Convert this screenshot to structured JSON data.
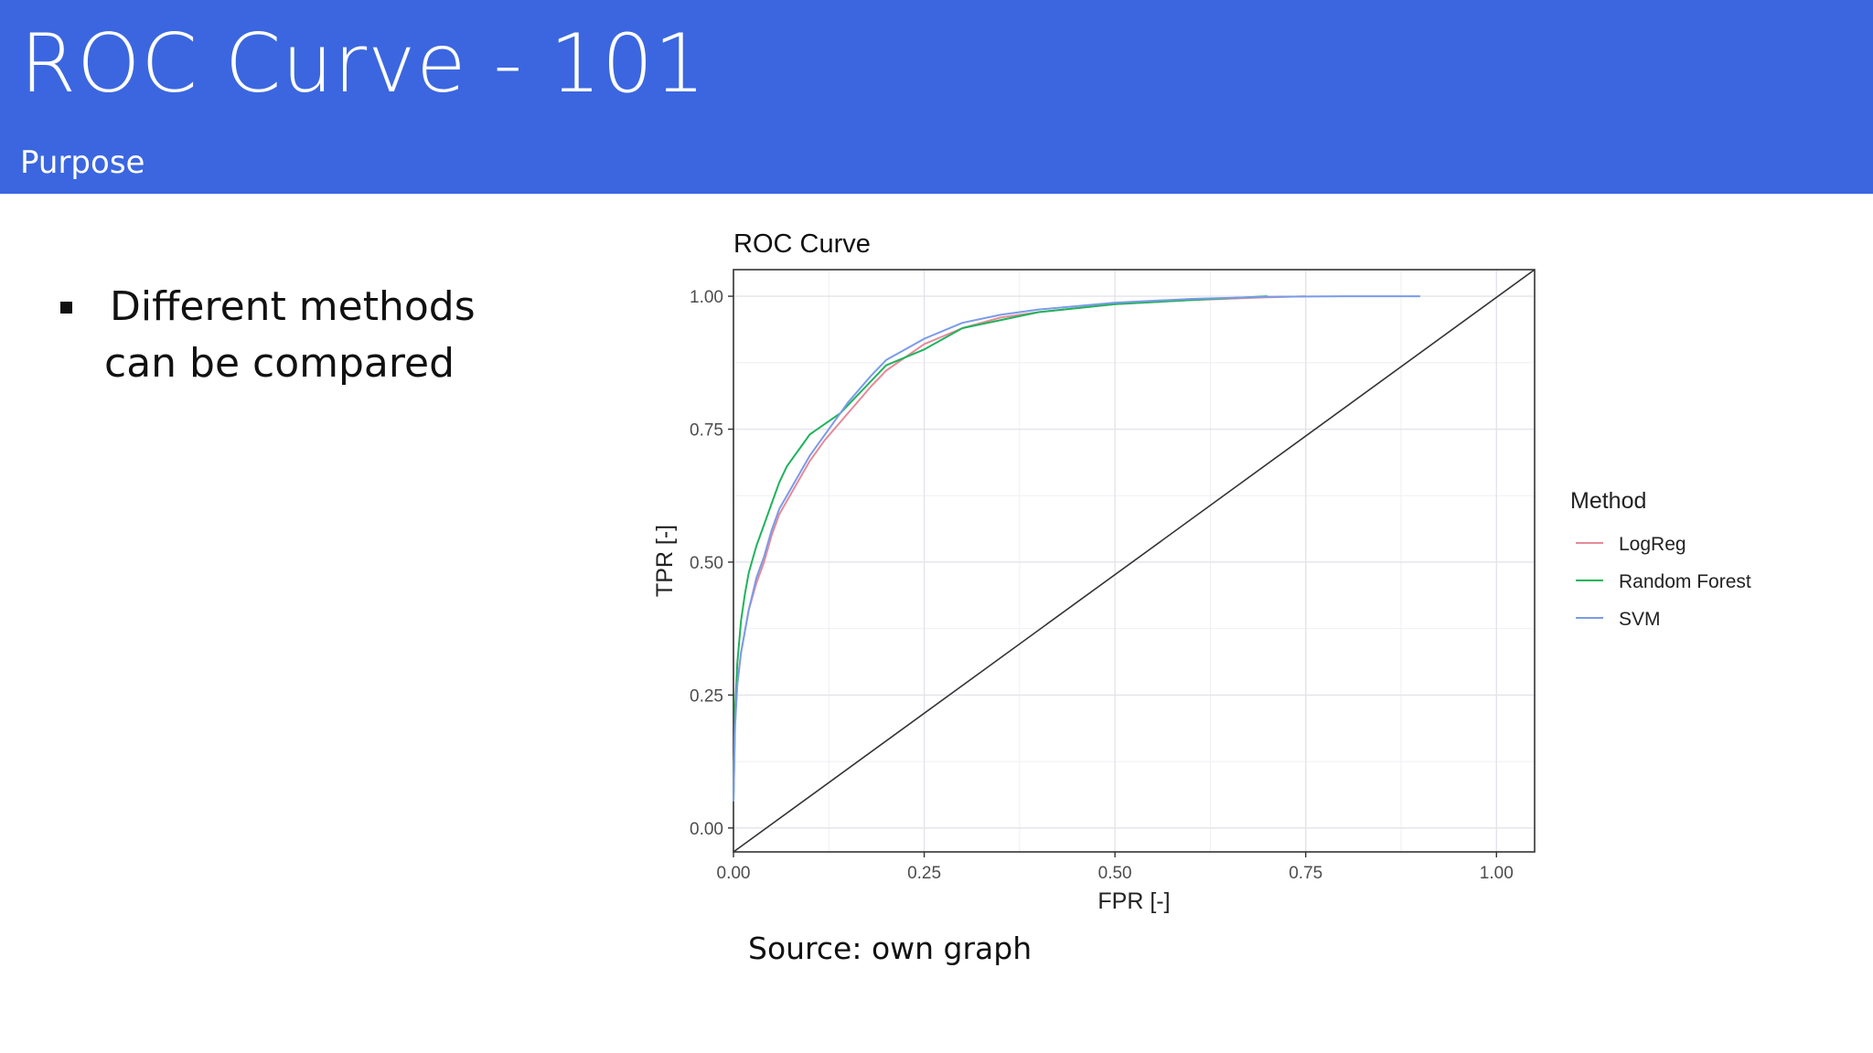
{
  "slide": {
    "title": "ROC Curve - 101",
    "subtitle": "Purpose",
    "bullet": [
      "Different methods",
      "can be compared"
    ],
    "source": "Source: own graph"
  },
  "colors": {
    "header": "#3b66e0",
    "LogReg": "#e58a99",
    "Random Forest": "#1fb35c",
    "SVM": "#7b9be8",
    "diagonal": "#333333"
  },
  "chart_data": {
    "type": "line",
    "title": "ROC Curve",
    "xlabel": "FPR [-]",
    "ylabel": "TPR [-]",
    "xlim": [
      0,
      1.05
    ],
    "ylim": [
      -0.045,
      1.05
    ],
    "xticks": [
      0,
      0.25,
      0.5,
      0.75,
      1.0
    ],
    "yticks": [
      0,
      0.25,
      0.5,
      0.75,
      1.0
    ],
    "xtick_labels": [
      "0.00",
      "0.25",
      "0.50",
      "0.75",
      "1.00"
    ],
    "ytick_labels": [
      "0.00",
      "0.25",
      "0.50",
      "0.75",
      "1.00"
    ],
    "grid": true,
    "legend": {
      "title": "Method",
      "position": "right"
    },
    "reference_line": {
      "x": [
        0,
        1.05
      ],
      "y": [
        -0.045,
        1.05
      ]
    },
    "series": [
      {
        "name": "LogReg",
        "x": [
          0,
          0.002,
          0.005,
          0.01,
          0.015,
          0.02,
          0.03,
          0.04,
          0.05,
          0.06,
          0.08,
          0.1,
          0.12,
          0.15,
          0.18,
          0.2,
          0.25,
          0.3,
          0.35,
          0.4,
          0.5,
          0.6,
          0.7,
          0.75
        ],
        "y": [
          0.05,
          0.2,
          0.27,
          0.33,
          0.37,
          0.41,
          0.46,
          0.5,
          0.55,
          0.59,
          0.64,
          0.69,
          0.73,
          0.78,
          0.83,
          0.86,
          0.91,
          0.94,
          0.96,
          0.97,
          0.985,
          0.993,
          0.998,
          1.0
        ]
      },
      {
        "name": "Random Forest",
        "x": [
          0,
          0.002,
          0.005,
          0.01,
          0.015,
          0.02,
          0.03,
          0.04,
          0.05,
          0.06,
          0.07,
          0.08,
          0.09,
          0.1,
          0.12,
          0.14,
          0.16,
          0.18,
          0.2,
          0.25,
          0.3,
          0.4,
          0.5,
          0.6,
          0.7
        ],
        "y": [
          0.05,
          0.22,
          0.31,
          0.39,
          0.44,
          0.48,
          0.53,
          0.57,
          0.61,
          0.65,
          0.68,
          0.7,
          0.72,
          0.74,
          0.76,
          0.78,
          0.81,
          0.84,
          0.87,
          0.9,
          0.94,
          0.97,
          0.985,
          0.993,
          1.0
        ]
      },
      {
        "name": "SVM",
        "x": [
          0,
          0.002,
          0.005,
          0.01,
          0.015,
          0.02,
          0.03,
          0.04,
          0.05,
          0.06,
          0.08,
          0.1,
          0.12,
          0.15,
          0.18,
          0.2,
          0.25,
          0.3,
          0.35,
          0.4,
          0.5,
          0.6,
          0.7,
          0.8,
          0.9
        ],
        "y": [
          0.05,
          0.19,
          0.27,
          0.33,
          0.37,
          0.41,
          0.47,
          0.51,
          0.56,
          0.6,
          0.65,
          0.7,
          0.74,
          0.8,
          0.85,
          0.88,
          0.92,
          0.95,
          0.965,
          0.975,
          0.988,
          0.995,
          0.999,
          1.0,
          1.0
        ]
      }
    ]
  }
}
